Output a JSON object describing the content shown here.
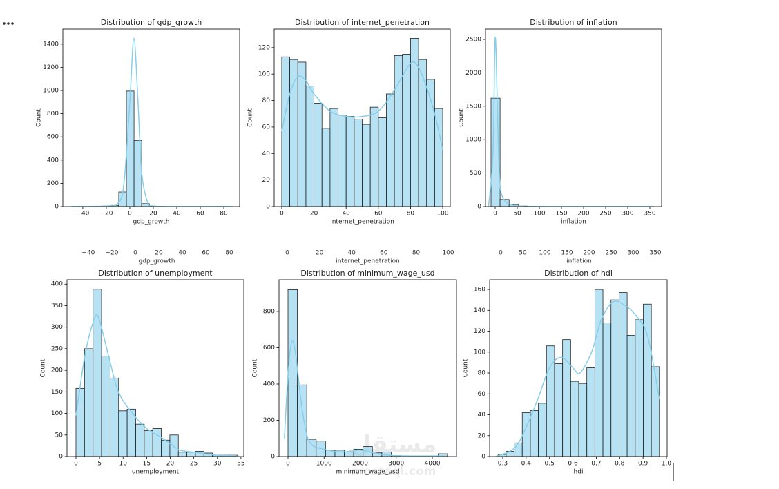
{
  "watermark": {
    "arabic": "مستقل",
    "latin": "mostaql.com"
  },
  "chart_data": [
    {
      "type": "histogram",
      "title": "Distribution of gdp_growth",
      "xlabel": "gdp_growth",
      "ylabel": "Count",
      "color": "#87ceeb",
      "bins": [
        -48.4,
        -41.9,
        -35.4,
        -28.9,
        -22.4,
        -15.9,
        -9.4,
        -2.9,
        3.6,
        10.1,
        16.6,
        23.1,
        29.6,
        36.1,
        42.6,
        49.1,
        55.6,
        62.1,
        68.6,
        75.1,
        81.6
      ],
      "values": [
        1,
        0,
        0,
        2,
        5,
        10,
        125,
        995,
        570,
        25,
        3,
        1,
        0,
        0,
        0,
        0,
        0,
        0,
        0,
        1
      ],
      "kde": {
        "x": [
          -50,
          -20,
          -10,
          -5,
          0,
          3.5,
          7,
          10,
          15,
          20,
          40,
          88
        ],
        "values": [
          0,
          5,
          30,
          200,
          900,
          1450,
          900,
          300,
          40,
          5,
          0,
          0
        ]
      },
      "xlim": [
        -57,
        93.5
      ],
      "ylim": [
        0,
        1530
      ],
      "xticks": [
        {
          "value": -40,
          "label": "−40"
        },
        {
          "value": -20,
          "label": "−20"
        },
        0,
        20,
        40,
        60,
        80
      ],
      "yticks": [
        0,
        200,
        400,
        600,
        800,
        1000,
        1200,
        1400
      ]
    },
    {
      "type": "histogram",
      "title": "Distribution of internet_penetration",
      "xlabel": "internet_penetration",
      "ylabel": "Count",
      "color": "#87ceeb",
      "bins": [
        0,
        5,
        10,
        15,
        20,
        25,
        30,
        35,
        40,
        45,
        50,
        55,
        60,
        65,
        70,
        75,
        80,
        85,
        90,
        95,
        100
      ],
      "values": [
        113,
        111,
        109,
        91,
        78,
        59,
        74,
        69,
        68,
        66,
        62,
        75,
        67,
        85,
        114,
        115,
        127,
        111,
        96,
        74
      ],
      "kde": {
        "x": [
          0,
          5,
          10,
          15,
          20,
          30,
          40,
          50,
          60,
          70,
          80,
          85,
          90,
          95,
          100
        ],
        "values": [
          57,
          85,
          98,
          95,
          85,
          72,
          68,
          68,
          72,
          88,
          108,
          105,
          90,
          70,
          43
        ]
      },
      "xlim": [
        -4.7,
        104.7
      ],
      "ylim": [
        0,
        134
      ],
      "xticks": [
        0,
        20,
        40,
        60,
        80,
        100
      ],
      "yticks": [
        0,
        20,
        40,
        60,
        80,
        100,
        120
      ]
    },
    {
      "type": "histogram",
      "title": "Distribution of inflation",
      "xlabel": "inflation",
      "ylabel": "Count",
      "color": "#87ceeb",
      "bins": [
        -9.4,
        11.1,
        31.6,
        52.1,
        72.6,
        93.1,
        113.6,
        134.1,
        154.6,
        175.1,
        195.6,
        216.1,
        236.6,
        257.1,
        277.6,
        298.1,
        318.6,
        339.1,
        359.6
      ],
      "values": [
        1620,
        105,
        30,
        8,
        3,
        2,
        1,
        1,
        0,
        0,
        0,
        0,
        0,
        0,
        0,
        0,
        0,
        1
      ],
      "kde": {
        "x": [
          -15,
          -5,
          0,
          5,
          10,
          20,
          40,
          60,
          100,
          360
        ],
        "values": [
          0,
          800,
          2520,
          1500,
          400,
          100,
          20,
          5,
          0,
          0
        ]
      },
      "xlim": [
        -21.9,
        376.6
      ],
      "ylim": [
        0,
        2655
      ],
      "xticks": [
        0,
        50,
        100,
        150,
        200,
        250,
        300,
        350
      ],
      "yticks": [
        0,
        500,
        1000,
        1500,
        2000,
        2500
      ]
    },
    {
      "type": "histogram",
      "title": "Distribution of unemployment",
      "xlabel": "unemployment",
      "ylabel": "Count",
      "color": "#87ceeb",
      "bins": [
        0,
        1.81,
        3.62,
        5.43,
        7.24,
        9.05,
        10.86,
        12.67,
        14.48,
        16.29,
        18.1,
        19.91,
        21.72,
        23.53,
        25.34,
        27.15,
        28.96,
        30.77,
        32.58,
        34.39
      ],
      "values": [
        158,
        250,
        388,
        233,
        182,
        106,
        110,
        75,
        60,
        65,
        38,
        50,
        10,
        10,
        12,
        8,
        3,
        3,
        3
      ],
      "kde": {
        "x": [
          0,
          2,
          4,
          5,
          7,
          9,
          12,
          15,
          18,
          20,
          22,
          25,
          30,
          34
        ],
        "values": [
          95,
          240,
          322,
          315,
          230,
          150,
          100,
          65,
          45,
          30,
          15,
          10,
          3,
          2
        ]
      },
      "xlim": [
        -1.9,
        35.6
      ],
      "ylim": [
        0,
        410
      ],
      "xticks": [
        0,
        5,
        10,
        15,
        20,
        25,
        30,
        35
      ],
      "yticks": [
        0,
        50,
        100,
        150,
        200,
        250,
        300,
        350,
        400
      ]
    },
    {
      "type": "histogram",
      "title": "Distribution of minimum_wage_usd",
      "xlabel": "minimum_wage_usd",
      "ylabel": "Count",
      "color": "#87ceeb",
      "bins": [
        0,
        260,
        520,
        780,
        1040,
        1300,
        1560,
        1820,
        2080,
        2340,
        2600,
        2860,
        3120,
        3380,
        3640,
        3900,
        4160,
        4420
      ],
      "values": [
        920,
        395,
        95,
        85,
        35,
        35,
        25,
        40,
        55,
        20,
        25,
        5,
        0,
        0,
        0,
        0,
        15
      ],
      "kde": {
        "x": [
          -100,
          0,
          100,
          200,
          400,
          600,
          1000,
          1500,
          2000,
          2500,
          3000,
          4400
        ],
        "values": [
          100,
          450,
          630,
          580,
          250,
          80,
          40,
          25,
          35,
          15,
          5,
          3
        ]
      },
      "xlim": [
        -249,
        4670
      ],
      "ylim": [
        0,
        975
      ],
      "xticks": [
        0,
        1000,
        2000,
        3000,
        4000
      ],
      "yticks": [
        0,
        200,
        400,
        600,
        800
      ]
    },
    {
      "type": "histogram",
      "title": "Distribution of hdi",
      "xlabel": "hdi",
      "ylabel": "Count",
      "color": "#87ceeb",
      "bins": [
        0.28,
        0.3145,
        0.349,
        0.3835,
        0.418,
        0.4525,
        0.487,
        0.5215,
        0.556,
        0.5905,
        0.625,
        0.6595,
        0.694,
        0.7285,
        0.763,
        0.7975,
        0.832,
        0.8665,
        0.901,
        0.9355,
        0.97
      ],
      "values": [
        2,
        5,
        13,
        42,
        44,
        51,
        106,
        89,
        112,
        72,
        70,
        85,
        160,
        128,
        150,
        157,
        116,
        131,
        146,
        86
      ],
      "kde": {
        "x": [
          0.27,
          0.35,
          0.4,
          0.45,
          0.5,
          0.55,
          0.6,
          0.63,
          0.68,
          0.72,
          0.77,
          0.82,
          0.87,
          0.92,
          0.97
        ],
        "values": [
          0,
          8,
          28,
          55,
          85,
          95,
          85,
          80,
          100,
          130,
          148,
          145,
          135,
          115,
          55
        ]
      },
      "xlim": [
        0.244,
        1.003
      ],
      "ylim": [
        0,
        169.3
      ],
      "xticks": [
        0.3,
        0.4,
        0.5,
        0.6,
        0.7,
        0.8,
        0.9,
        {
          "value": 1,
          "label": "1.0"
        }
      ],
      "yticks": [
        0,
        20,
        40,
        60,
        80,
        100,
        120,
        140,
        160
      ]
    }
  ]
}
